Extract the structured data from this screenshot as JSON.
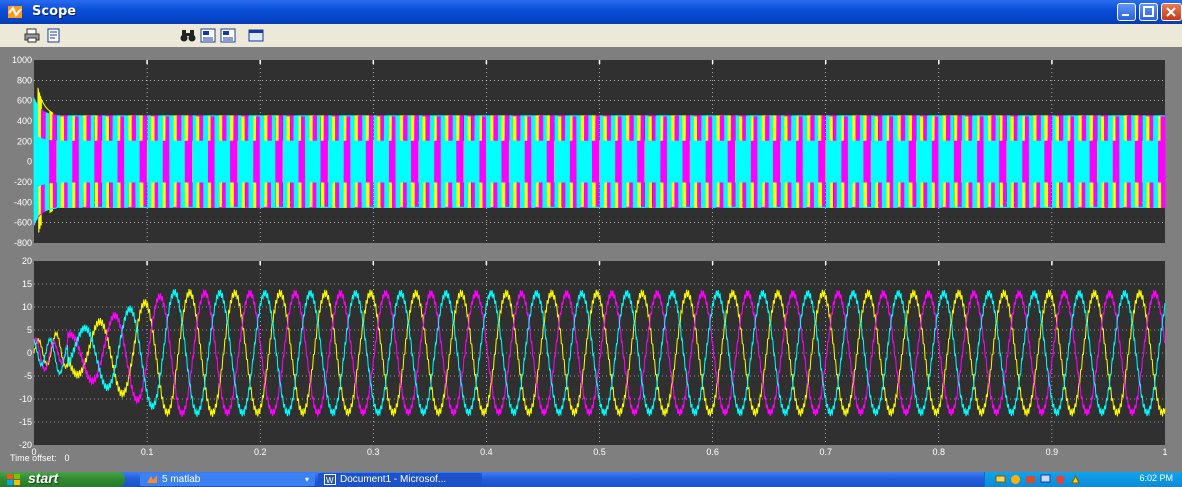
{
  "window": {
    "title": "Scope",
    "toolbar_icons": [
      "print-icon",
      "parameters-icon",
      "zoom-binoculars-icon",
      "save-axes-icon",
      "restore-axes-icon",
      "floating-scope-icon"
    ]
  },
  "status": {
    "time_offset_label": "Time offset:",
    "time_offset_value": "0"
  },
  "colors": {
    "plot_background": "#303030",
    "figure_background": "#7f7f7f",
    "axis_text": "#ffffff",
    "grid": "#ffffff",
    "series_a": "#ffff00",
    "series_b": "#ff00ff",
    "series_c": "#00ffff"
  },
  "taskbar": {
    "start_label": "start",
    "tasks": [
      {
        "label": "5 matlab",
        "icon": "matlab-icon"
      },
      {
        "label": "Document1 - Microsof...",
        "icon": "word-icon"
      }
    ],
    "clock": "6:02 PM",
    "tray_icons": [
      "network-icon",
      "messenger-icon",
      "volume-icon",
      "display-icon",
      "security-icon",
      "power-icon"
    ]
  },
  "chart_data": [
    {
      "type": "line",
      "ylim": [
        -800,
        1000
      ],
      "xlim": [
        0,
        1
      ],
      "yticks": [
        -800,
        -600,
        -400,
        -200,
        0,
        200,
        400,
        600,
        800,
        1000
      ],
      "xticks": [],
      "grid": true,
      "series": [
        {
          "color": "#ffff00",
          "form": "PWM switched waveform, levels about ±200 and ±450, fundamental 25 Hz, startup spike to ~950 near t=0.005",
          "x": [
            0,
            0.005,
            0.01,
            0.02,
            0.04,
            0.06,
            0.08,
            0.1
          ],
          "y": [
            0,
            950,
            -600,
            400,
            -400,
            200,
            -200,
            400
          ]
        },
        {
          "color": "#ff00ff",
          "form": "PWM switched waveform, levels about ±200 and ±450, phase shifted",
          "x": [
            0,
            0.01,
            0.02,
            0.04,
            0.06,
            0.08,
            0.1
          ],
          "y": [
            0,
            -650,
            400,
            -400,
            450,
            -200,
            200
          ]
        },
        {
          "color": "#00ffff",
          "form": "PWM switched waveform, levels about ±200 and ±450, phase shifted",
          "x": [
            0,
            0.01,
            0.02,
            0.04,
            0.06,
            0.08,
            0.1
          ],
          "y": [
            0,
            200,
            -450,
            400,
            -200,
            200,
            -400
          ]
        }
      ]
    },
    {
      "type": "line",
      "ylim": [
        -20,
        20
      ],
      "xlim": [
        0,
        1
      ],
      "yticks": [
        -20,
        -15,
        -10,
        -5,
        0,
        5,
        10,
        15,
        20
      ],
      "xticks": [
        0,
        0.1,
        0.2,
        0.3,
        0.4,
        0.5,
        0.6,
        0.7,
        0.8,
        0.9,
        1
      ],
      "grid": true,
      "series": [
        {
          "color": "#ffff00",
          "form": "three-phase sinusoidal current, amplitude ~13, period 0.04",
          "x": [
            0,
            0.005,
            0.02,
            0.03,
            0.05,
            0.07,
            0.09,
            0.1,
            0.2,
            0.3,
            0.4,
            0.5,
            0.6,
            0.7,
            0.8,
            0.9,
            1.0
          ],
          "y": [
            0,
            -4,
            12,
            18,
            10,
            -8,
            -13,
            -5,
            8,
            -6,
            10,
            -2,
            4,
            -12,
            13,
            -4,
            -12
          ]
        },
        {
          "color": "#ff00ff",
          "form": "three-phase sinusoidal current, amplitude ~13, lagging 120°",
          "x": [
            0,
            0.01,
            0.03,
            0.05,
            0.07,
            0.09,
            0.1,
            0.2,
            0.3,
            0.4,
            0.5,
            0.6,
            0.7,
            0.8,
            0.9,
            1.0
          ],
          "y": [
            0,
            4,
            -1,
            10,
            16,
            6,
            -10,
            4,
            10,
            -8,
            11,
            -12,
            12,
            -6,
            2,
            0
          ]
        },
        {
          "color": "#00ffff",
          "form": "three-phase sinusoidal current, amplitude ~13, lagging 240°",
          "x": [
            0,
            0.01,
            0.03,
            0.05,
            0.07,
            0.09,
            0.1,
            0.2,
            0.3,
            0.4,
            0.5,
            0.6,
            0.7,
            0.8,
            0.9,
            1.0
          ],
          "y": [
            0,
            3,
            0,
            -10,
            -15,
            -5,
            5,
            -12,
            -4,
            -2,
            -9,
            11,
            0,
            12,
            -11,
            10
          ]
        }
      ]
    }
  ]
}
